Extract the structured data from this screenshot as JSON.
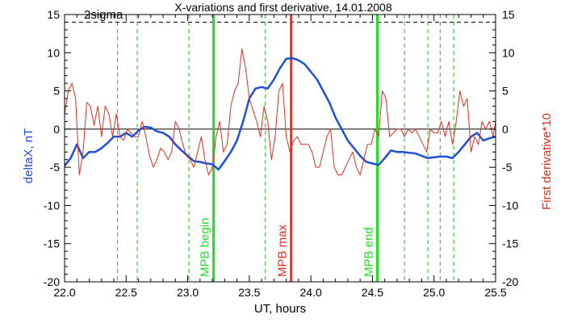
{
  "chart_data": {
    "type": "line",
    "title": "X-variations and first derivative, 14.01.2008",
    "xlabel": "UT, hours",
    "ylabel_left": "deltaX, nT",
    "ylabel_right": "First derivative*10",
    "xlim": [
      22.0,
      25.5
    ],
    "ylim_left": [
      -20,
      15
    ],
    "ylim_right": [
      -20,
      15
    ],
    "x_ticks": [
      "22.0",
      "22.5",
      "23.0",
      "23.5",
      "24.0",
      "24.5",
      "25.0",
      "25.5"
    ],
    "y_ticks_left": [
      "15",
      "10",
      "5",
      "0",
      "-5",
      "-10",
      "-15",
      "-20"
    ],
    "y_ticks_right": [
      "15",
      "10",
      "5",
      "0",
      "-5",
      "-10",
      "-15",
      "-20"
    ],
    "threshold": {
      "label": "2sigma",
      "value": 14
    },
    "colors": {
      "deltaX": "#1f4fd8",
      "derivative": "#d8301f",
      "mpb": "#22dd22",
      "max": "#ee2a1a",
      "dashed": "#22bb22"
    },
    "markers": [
      {
        "label": "MPB begin",
        "x": 23.21,
        "color": "#22dd22"
      },
      {
        "label": "MPB max",
        "x": 23.84,
        "color": "#ee2a1a"
      },
      {
        "label": "MPB end",
        "x": 24.54,
        "color": "#22dd22"
      }
    ],
    "dashed_lines": [
      22.43,
      22.59,
      23.01,
      23.63,
      24.76,
      24.95,
      25.05,
      25.16
    ],
    "series": [
      {
        "name": "deltaX",
        "axis": "left",
        "x": [
          22.0,
          22.05,
          22.1,
          22.15,
          22.2,
          22.25,
          22.3,
          22.35,
          22.4,
          22.45,
          22.5,
          22.55,
          22.6,
          22.65,
          22.7,
          22.75,
          22.8,
          22.85,
          22.9,
          22.95,
          23.0,
          23.05,
          23.1,
          23.15,
          23.2,
          23.25,
          23.3,
          23.35,
          23.4,
          23.45,
          23.5,
          23.55,
          23.6,
          23.65,
          23.7,
          23.75,
          23.8,
          23.85,
          23.9,
          23.95,
          24.0,
          24.05,
          24.1,
          24.15,
          24.2,
          24.25,
          24.3,
          24.35,
          24.4,
          24.45,
          24.5,
          24.55,
          24.6,
          24.65,
          24.7,
          24.75,
          24.8,
          24.85,
          24.9,
          24.95,
          25.0,
          25.05,
          25.1,
          25.15,
          25.2,
          25.25,
          25.3,
          25.35,
          25.4,
          25.45,
          25.5
        ],
        "values": [
          -4.8,
          -3.8,
          -2.0,
          -3.8,
          -3.0,
          -3.0,
          -2.5,
          -1.8,
          -1.0,
          -1.0,
          -0.5,
          -1.0,
          -0.2,
          0.3,
          0.2,
          -0.3,
          -0.5,
          -1.0,
          -2.0,
          -2.8,
          -3.5,
          -4.2,
          -4.3,
          -4.5,
          -4.6,
          -5.3,
          -4.2,
          -3.0,
          -1.5,
          1.0,
          4.0,
          5.3,
          5.5,
          5.3,
          6.5,
          8.0,
          9.2,
          9.3,
          9.0,
          8.5,
          7.5,
          6.5,
          5.0,
          3.5,
          1.5,
          0.0,
          -1.5,
          -2.5,
          -3.5,
          -4.3,
          -4.5,
          -4.7,
          -3.8,
          -2.8,
          -3.0,
          -3.0,
          -3.1,
          -3.2,
          -3.5,
          -3.8,
          -3.7,
          -3.6,
          -3.6,
          -3.8,
          -3.0,
          -2.0,
          -1.0,
          -0.5,
          -1.5,
          -1.2,
          -1.0
        ]
      },
      {
        "name": "First derivative*10",
        "axis": "right",
        "x": [
          22.0,
          22.03,
          22.06,
          22.09,
          22.12,
          22.15,
          22.18,
          22.21,
          22.24,
          22.27,
          22.3,
          22.33,
          22.36,
          22.39,
          22.42,
          22.45,
          22.48,
          22.51,
          22.54,
          22.57,
          22.6,
          22.63,
          22.66,
          22.69,
          22.72,
          22.75,
          22.78,
          22.81,
          22.84,
          22.87,
          22.9,
          22.93,
          22.96,
          22.99,
          23.02,
          23.05,
          23.08,
          23.11,
          23.14,
          23.17,
          23.2,
          23.23,
          23.26,
          23.29,
          23.32,
          23.35,
          23.38,
          23.41,
          23.44,
          23.47,
          23.5,
          23.53,
          23.56,
          23.59,
          23.62,
          23.65,
          23.68,
          23.71,
          23.74,
          23.77,
          23.8,
          23.83,
          23.86,
          23.89,
          23.92,
          23.95,
          23.98,
          24.01,
          24.04,
          24.07,
          24.1,
          24.13,
          24.16,
          24.19,
          24.22,
          24.25,
          24.28,
          24.31,
          24.34,
          24.37,
          24.4,
          24.43,
          24.46,
          24.49,
          24.52,
          24.55,
          24.58,
          24.61,
          24.64,
          24.67,
          24.7,
          24.73,
          24.76,
          24.79,
          24.82,
          24.85,
          24.88,
          24.91,
          24.94,
          24.97,
          25.0,
          25.03,
          25.06,
          25.09,
          25.12,
          25.15,
          25.18,
          25.21,
          25.24,
          25.27,
          25.3,
          25.33,
          25.36,
          25.39,
          25.42,
          25.45,
          25.48,
          25.5
        ],
        "values": [
          2.0,
          5.0,
          6.0,
          4.0,
          -6.0,
          -3.0,
          3.5,
          3.0,
          0.5,
          3.0,
          -1.0,
          3.0,
          2.0,
          -1.0,
          2.0,
          -1.0,
          -1.5,
          0.0,
          -0.5,
          -1.0,
          -1.0,
          1.0,
          -1.0,
          -3.5,
          -5.0,
          -4.0,
          -2.5,
          -3.0,
          -4.0,
          -3.0,
          1.0,
          0.0,
          -2.0,
          -3.5,
          -4.0,
          -5.0,
          -3.0,
          -1.0,
          -4.0,
          -6.0,
          -5.0,
          -1.0,
          1.0,
          -3.0,
          -2.0,
          3.0,
          5.0,
          6.0,
          10.5,
          8.0,
          4.0,
          2.5,
          1.0,
          -1.0,
          3.0,
          1.0,
          -4.0,
          -1.0,
          5.0,
          6.0,
          -1.0,
          -3.0,
          -1.5,
          -1.0,
          -2.0,
          -2.0,
          -2.0,
          -3.0,
          -5.0,
          -5.0,
          -3.0,
          -1.0,
          0.0,
          -5.0,
          -6.0,
          -6.0,
          -5.0,
          -4.0,
          -3.0,
          -5.0,
          -6.0,
          -4.0,
          -2.0,
          -2.0,
          0.0,
          -1.0,
          5.0,
          4.0,
          -1.0,
          -0.5,
          0.0,
          0.0,
          -1.0,
          0.0,
          -0.5,
          0.0,
          -1.0,
          -2.0,
          -3.0,
          0.0,
          -0.5,
          -0.5,
          1.0,
          -1.0,
          1.0,
          -2.0,
          1.0,
          5.0,
          3.0,
          4.0,
          -3.0,
          -1.0,
          -2.0,
          1.0,
          0.0,
          1.0,
          -1.0,
          1.0
        ]
      }
    ]
  }
}
